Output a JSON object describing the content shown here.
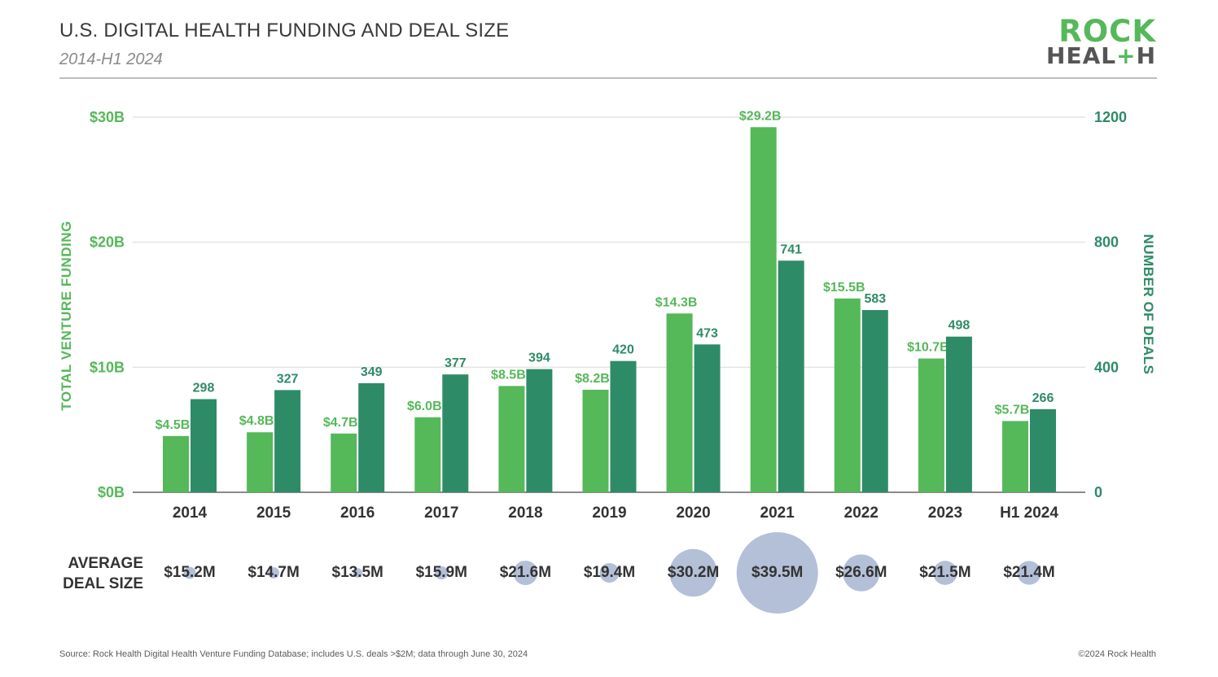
{
  "header": {
    "title": "U.S. DIGITAL HEALTH FUNDING AND DEAL SIZE",
    "subtitle": "2014-H1 2024"
  },
  "logo": {
    "line1": "ROCK",
    "line2a": "HEAL",
    "line2b": "+",
    "line2c": "H"
  },
  "footer": {
    "source": "Source: Rock Health Digital Health Venture Funding Database; includes U.S. deals >$2M; data through June 30, 2024",
    "copyright": "©2024 Rock Health"
  },
  "colors": {
    "funding": "#55b859",
    "deals": "#2e8b67",
    "bubble": "#b4c0d8",
    "grid": "#e4e4e4"
  },
  "chart_data": {
    "type": "bar",
    "categories": [
      "2014",
      "2015",
      "2016",
      "2017",
      "2018",
      "2019",
      "2020",
      "2021",
      "2022",
      "2023",
      "H1 2024"
    ],
    "series": [
      {
        "name": "",
        "axis": "left",
        "values": [
          4.5,
          4.8,
          4.7,
          6.0,
          8.5,
          8.2,
          14.3,
          29.2,
          15.5,
          10.7,
          5.7
        ],
        "labels": [
          "$4.5B",
          "$4.8B",
          "$4.7B",
          "$6.0B",
          "$8.5B",
          "$8.2B",
          "$14.3B",
          "$29.2B",
          "$15.5B",
          "$10.7B",
          "$5.7B"
        ]
      },
      {
        "name": "",
        "axis": "right",
        "values": [
          298,
          327,
          349,
          377,
          394,
          420,
          473,
          741,
          583,
          498,
          266
        ],
        "labels": [
          "298",
          "327",
          "349",
          "377",
          "394",
          "420",
          "473",
          "741",
          "583",
          "498",
          "266"
        ]
      }
    ],
    "ylabel_left": "TOTAL VENTURE FUNDING",
    "ylabel_right": "NUMBER OF DEALS",
    "ylim_left": [
      0,
      30
    ],
    "ylim_right": [
      0,
      1200
    ],
    "yticks_left": [
      "$0B",
      "$10B",
      "$20B",
      "$30B"
    ],
    "yticks_right": [
      "0",
      "400",
      "800",
      "1200"
    ],
    "grid": true,
    "average_deal_size": {
      "label": "AVERAGE DEAL SIZE",
      "values": [
        15.2,
        14.7,
        13.5,
        15.9,
        21.6,
        19.4,
        30.2,
        39.5,
        26.6,
        21.5,
        21.4
      ],
      "labels": [
        "$15.2M",
        "$14.7M",
        "$13.5M",
        "$15.9M",
        "$21.6M",
        "$19.4M",
        "$30.2M",
        "$39.5M",
        "$26.6M",
        "$21.5M",
        "$21.4M"
      ]
    }
  }
}
